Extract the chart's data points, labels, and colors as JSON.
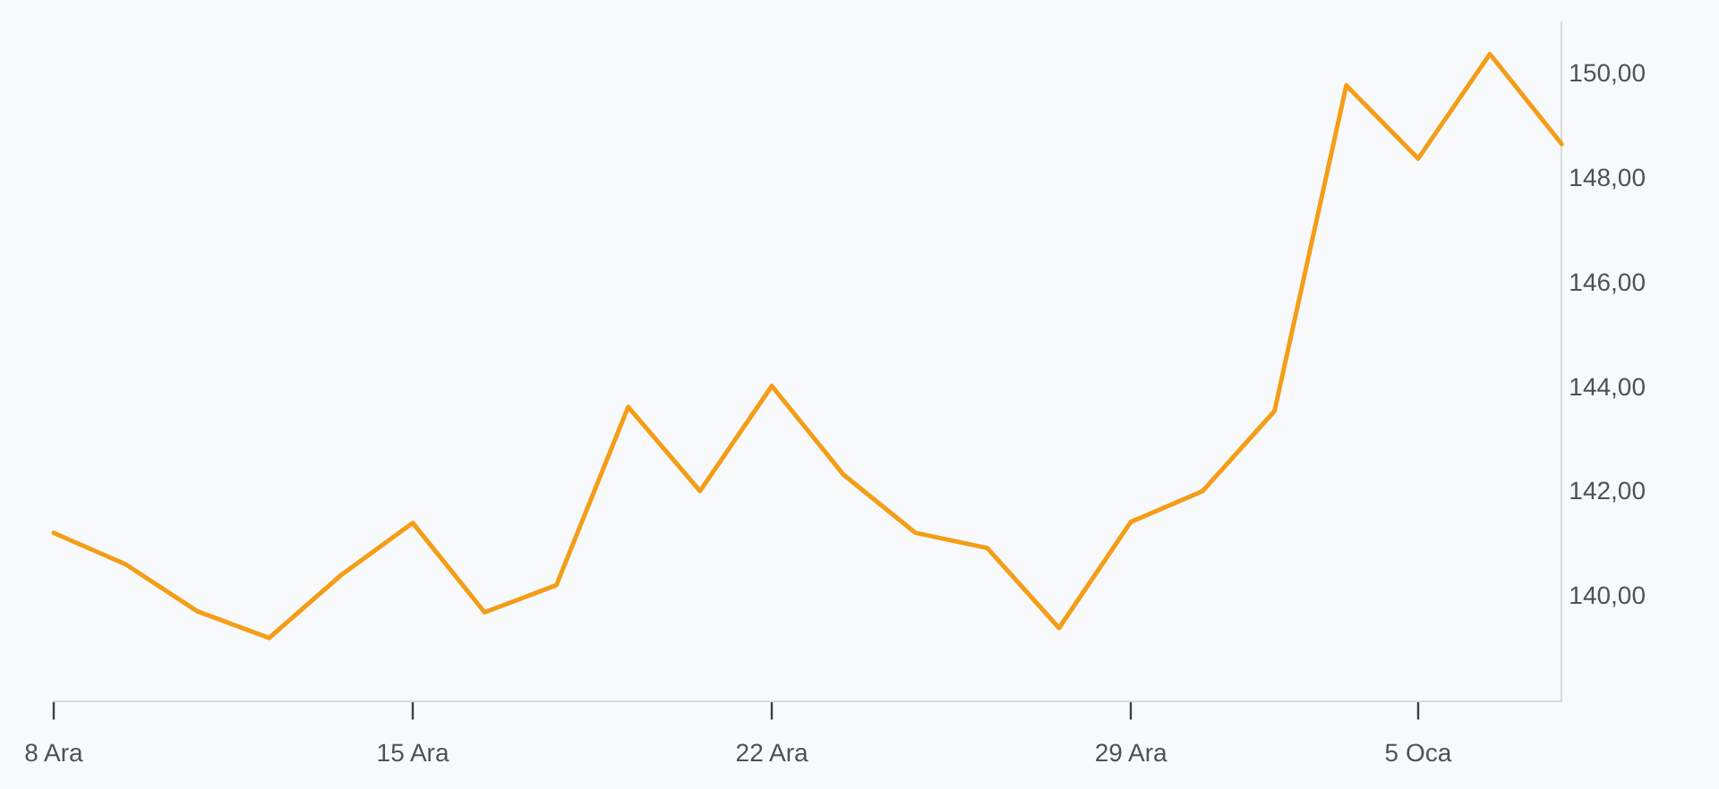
{
  "chart_data": {
    "type": "line",
    "categories": [
      "8 Ara",
      null,
      null,
      null,
      null,
      "15 Ara",
      null,
      null,
      null,
      null,
      "22 Ara",
      null,
      null,
      null,
      null,
      "29 Ara",
      null,
      null,
      null,
      "5 Oca",
      null,
      null
    ],
    "values": [
      141.23,
      140.63,
      139.73,
      139.22,
      140.42,
      141.42,
      139.71,
      140.23,
      143.64,
      142.03,
      144.04,
      142.34,
      141.23,
      140.94,
      139.41,
      141.44,
      142.03,
      143.56,
      149.79,
      148.39,
      150.39,
      148.67
    ],
    "color": "#f49d17",
    "ylim": [
      138,
      151
    ],
    "yticks": [
      {
        "value": 140,
        "label": "140,00"
      },
      {
        "value": 142,
        "label": "142,00"
      },
      {
        "value": 144,
        "label": "144,00"
      },
      {
        "value": 146,
        "label": "146,00"
      },
      {
        "value": 148,
        "label": "148,00"
      },
      {
        "value": 150,
        "label": "150,00"
      }
    ],
    "marker": "none",
    "line_style": "solid"
  }
}
